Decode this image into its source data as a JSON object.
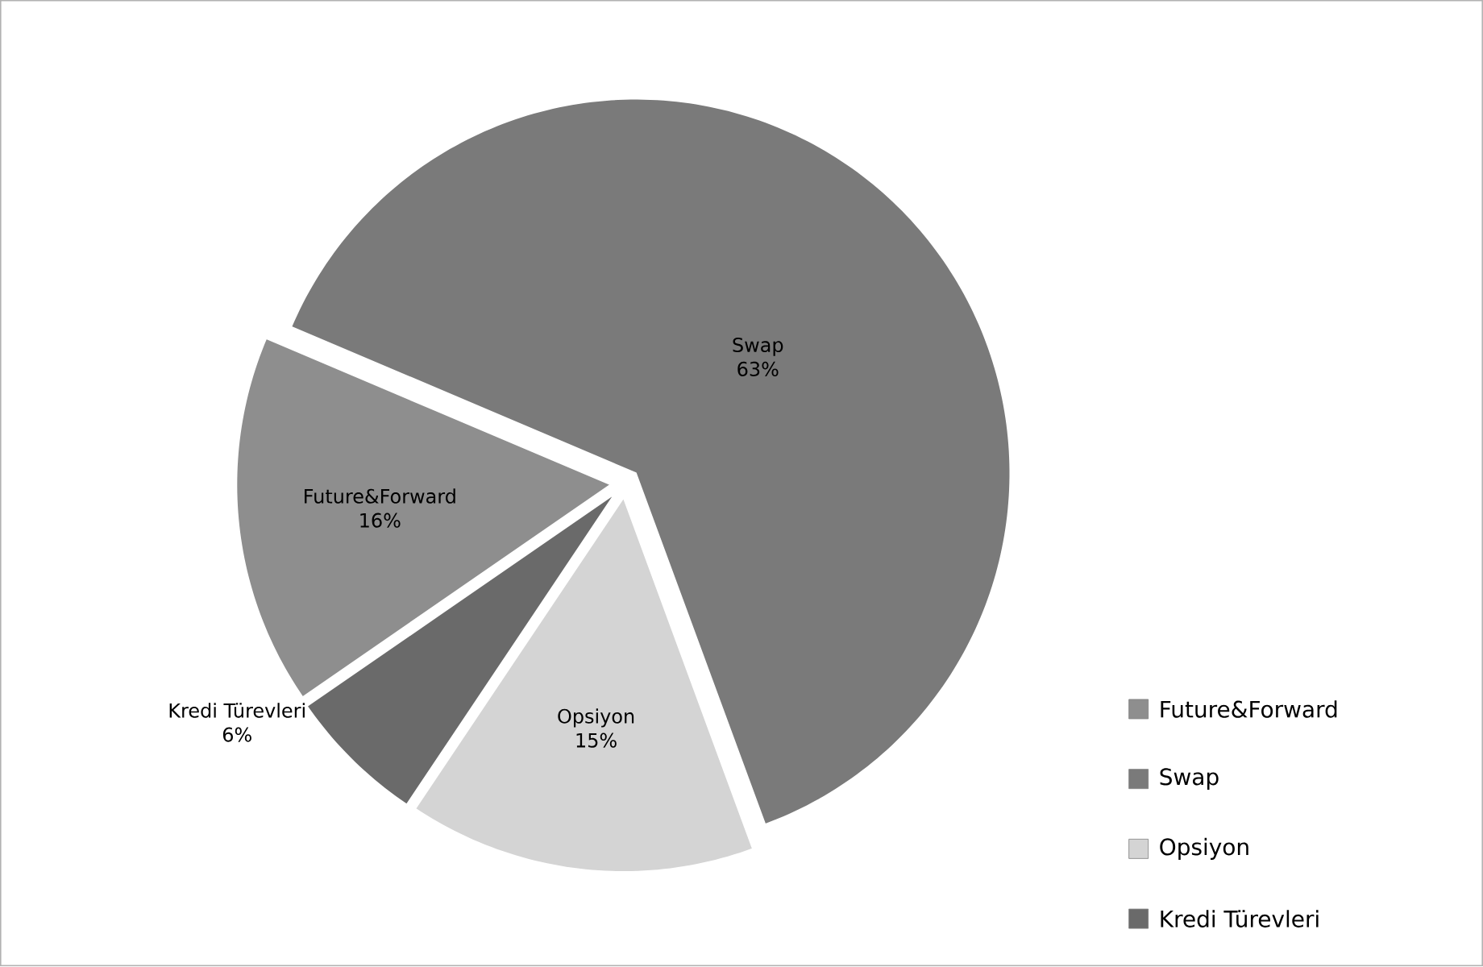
{
  "chart_data": {
    "type": "pie",
    "categories": [
      "Future&Forward",
      "Swap",
      "Opsiyon",
      "Kredi Türevleri"
    ],
    "values": [
      16,
      63,
      15,
      6
    ],
    "value_labels": [
      "16%",
      "63%",
      "15%",
      "6%"
    ],
    "colors": [
      "#8e8e8e",
      "#7a7a7a",
      "#d4d4d4",
      "#6a6a6a"
    ],
    "legend": "right"
  }
}
